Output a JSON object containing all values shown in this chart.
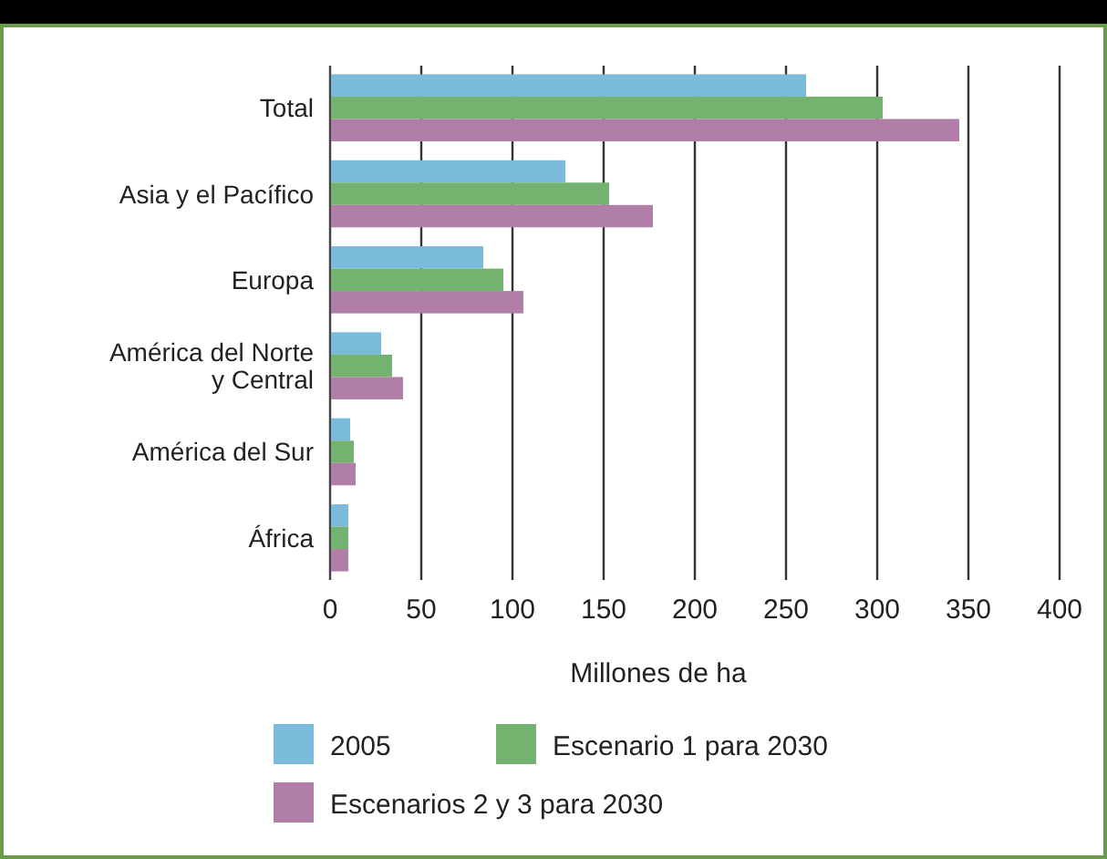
{
  "chart_data": {
    "type": "bar",
    "orientation": "horizontal",
    "xlabel": "Millones de ha",
    "categories": [
      "Total",
      "Asia y el Pacífico",
      "Europa",
      "América del Norte\ny Central",
      "América del Sur",
      "África"
    ],
    "series": [
      {
        "name": "2005",
        "color": "#7abada",
        "values": [
          261,
          129,
          84,
          28,
          11,
          10
        ]
      },
      {
        "name": "Escenario 1 para 2030",
        "color": "#73b26f",
        "values": [
          303,
          153,
          95,
          34,
          13,
          10
        ]
      },
      {
        "name": "Escenarios 2 y 3 para 2030",
        "color": "#b07ea6",
        "values": [
          345,
          177,
          106,
          40,
          14,
          10
        ]
      }
    ],
    "xlim": [
      0,
      400
    ],
    "xticks": [
      0,
      50,
      100,
      150,
      200,
      250,
      300,
      350,
      400
    ],
    "grid": "x",
    "legend": "bottom"
  }
}
